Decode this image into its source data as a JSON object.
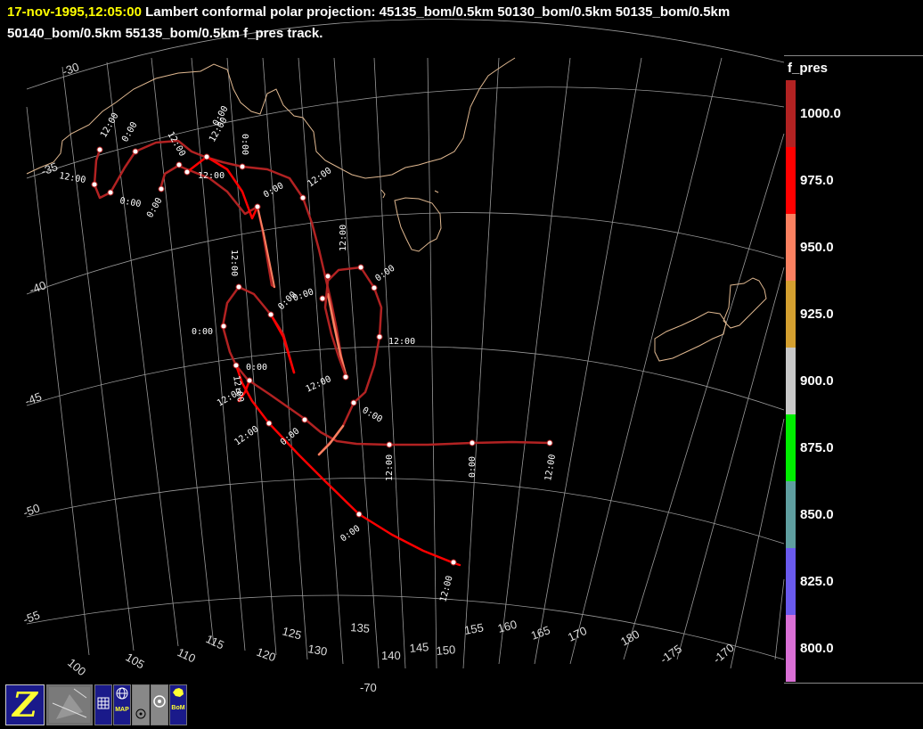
{
  "title": {
    "date": "17-nov-1995,12:05:00",
    "line1_rest": "Lambert conformal polar projection:  45135_bom/0.5km 50130_bom/0.5km 50135_bom/0.5km",
    "line2": "50140_bom/0.5km 55135_bom/0.5km f_pres track."
  },
  "colorbar": {
    "title": "f_pres",
    "segments": [
      {
        "label": "1000.0",
        "color": "#b22222"
      },
      {
        "label": "975.0",
        "color": "#ff0000"
      },
      {
        "label": "950.0",
        "color": "#fa8060"
      },
      {
        "label": "925.0",
        "color": "#d4a030"
      },
      {
        "label": "900.0",
        "color": "#c8c8c8"
      },
      {
        "label": "875.0",
        "color": "#00ee00"
      },
      {
        "label": "850.0",
        "color": "#5f9ea0"
      },
      {
        "label": "825.0",
        "color": "#6a5aed"
      },
      {
        "label": "800.0",
        "color": "#da70d6"
      }
    ]
  },
  "lat_labels": [
    "-30",
    "-35",
    "-40",
    "-45",
    "-50",
    "-55"
  ],
  "lon_labels": [
    "100",
    "105",
    "110",
    "115",
    "120",
    "125",
    "130",
    "135",
    "140",
    "145",
    "150",
    "155",
    "160",
    "165",
    "170",
    "180",
    "-175",
    "-170"
  ],
  "extra_labels": {
    "minus70": "-70"
  },
  "track_times": {
    "t1200": "12:00",
    "t0000": "0:00"
  },
  "toolbar": {
    "z_label": "Z",
    "map_label": "MAP",
    "bom_label": "BoM"
  },
  "colors": {
    "coast": "#e0b890",
    "grid": "#aaaaaa",
    "track_dark": "#b22222",
    "track_red": "#ff0000",
    "track_orange": "#fa8060"
  }
}
